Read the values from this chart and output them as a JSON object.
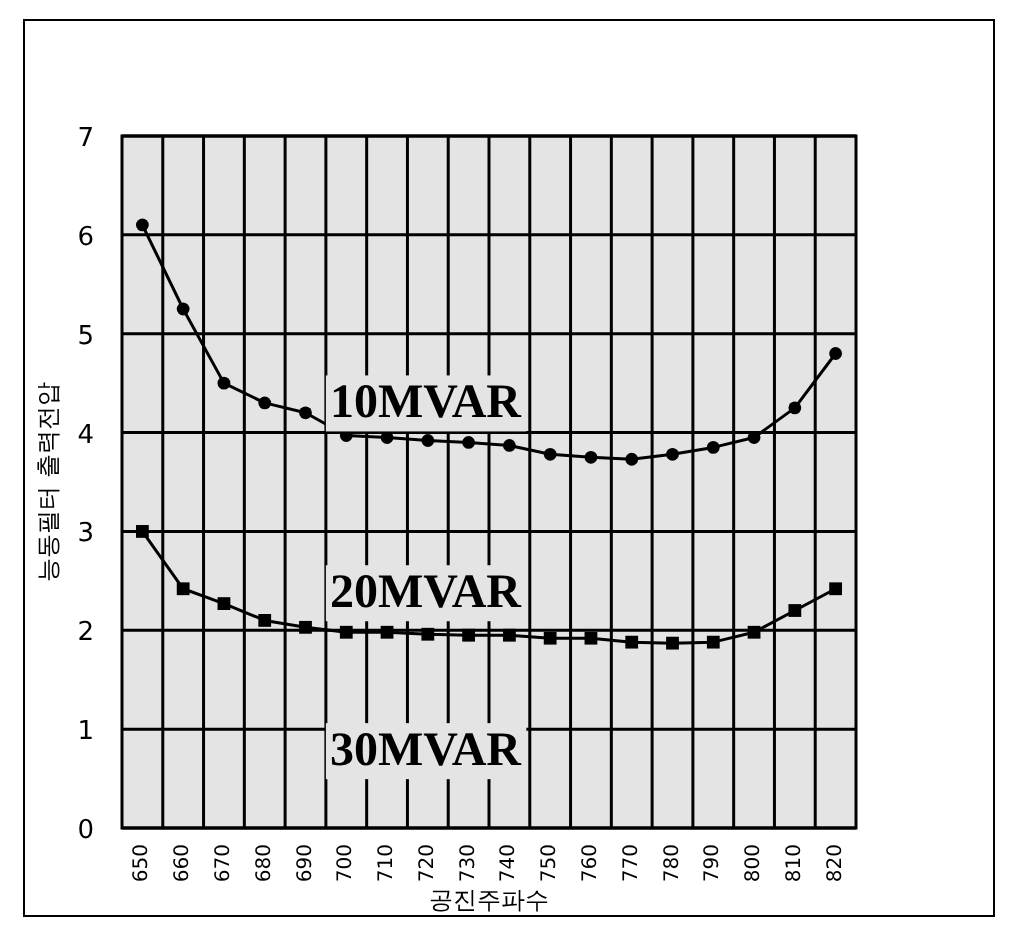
{
  "chart_data": {
    "type": "line",
    "xlabel": "공진주파수",
    "ylabel": "능동필터 출력전압",
    "categories": [
      "650",
      "660",
      "670",
      "680",
      "690",
      "700",
      "710",
      "720",
      "730",
      "740",
      "750",
      "760",
      "770",
      "780",
      "790",
      "800",
      "810",
      "820"
    ],
    "series": [
      {
        "name": "10MVAR",
        "color": "#000000",
        "marker": "circle",
        "values": [
          6.1,
          5.25,
          4.5,
          4.3,
          4.2,
          3.97,
          3.95,
          3.92,
          3.9,
          3.87,
          3.78,
          3.75,
          3.73,
          3.78,
          3.85,
          3.95,
          4.25,
          4.8
        ]
      },
      {
        "name": "20MVAR",
        "color": "#000000",
        "marker": "square",
        "values": [
          3.0,
          2.42,
          2.27,
          2.1,
          2.03,
          1.98,
          1.98,
          1.96,
          1.95,
          1.95,
          1.92,
          1.92,
          1.88,
          1.87,
          1.88,
          1.98,
          2.2,
          2.42
        ]
      }
    ],
    "annotations": [
      "30MVAR"
    ],
    "ylim": [
      0,
      7
    ],
    "yticks": [
      0,
      1,
      2,
      3,
      4,
      5,
      6,
      7
    ],
    "grid": true,
    "line_style": "solid"
  }
}
